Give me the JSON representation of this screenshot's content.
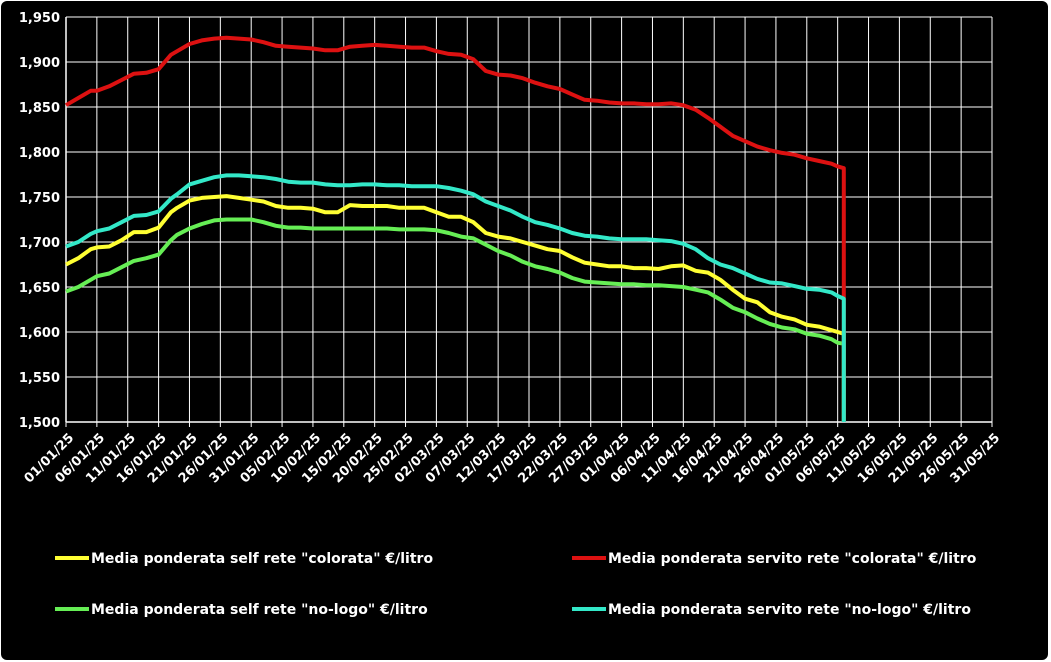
{
  "chart_data": {
    "type": "line",
    "title": "",
    "xlabel": "",
    "ylabel": "",
    "ylim": [
      1.5,
      1.95
    ],
    "y_ticks": [
      "1,500",
      "1,550",
      "1,600",
      "1,650",
      "1,700",
      "1,750",
      "1,800",
      "1,850",
      "1,900",
      "1,950"
    ],
    "x_tick_labels": [
      "01/01/25",
      "06/01/25",
      "11/01/25",
      "16/01/25",
      "21/01/25",
      "26/01/25",
      "31/01/25",
      "05/02/25",
      "10/02/25",
      "15/02/25",
      "20/02/25",
      "25/02/25",
      "02/03/25",
      "07/03/25",
      "12/03/25",
      "17/03/25",
      "22/03/25",
      "27/03/25",
      "01/04/25",
      "06/04/25",
      "11/04/25",
      "16/04/25",
      "21/04/25",
      "26/04/25",
      "01/05/25",
      "06/05/25",
      "11/05/25",
      "16/05/25",
      "21/05/25",
      "26/05/25",
      "31/05/25"
    ],
    "x_day_span": 150,
    "grid": true,
    "legend_position": "bottom",
    "series": [
      {
        "name": "Media ponderata self rete \"colorata\" €/litro",
        "color": "#ffff33",
        "x": [
          0,
          2,
          4,
          5,
          7,
          9,
          11,
          13,
          15,
          17,
          18,
          20,
          22,
          24,
          26,
          28,
          30,
          32,
          34,
          36,
          38,
          40,
          42,
          44,
          46,
          48,
          50,
          52,
          54,
          56,
          58,
          60,
          62,
          64,
          66,
          68,
          70,
          72,
          74,
          76,
          78,
          80,
          82,
          84,
          86,
          88,
          90,
          92,
          94,
          96,
          98,
          100,
          102,
          104,
          106,
          108,
          110,
          112,
          114,
          116,
          118,
          120,
          122,
          124,
          125,
          126
        ],
        "values": [
          1.675,
          1.682,
          1.692,
          1.694,
          1.695,
          1.702,
          1.711,
          1.711,
          1.716,
          1.733,
          1.738,
          1.746,
          1.749,
          1.75,
          1.751,
          1.749,
          1.747,
          1.745,
          1.74,
          1.738,
          1.738,
          1.737,
          1.733,
          1.733,
          1.741,
          1.74,
          1.74,
          1.74,
          1.738,
          1.738,
          1.738,
          1.733,
          1.728,
          1.728,
          1.722,
          1.71,
          1.706,
          1.704,
          1.7,
          1.696,
          1.692,
          1.69,
          1.683,
          1.677,
          1.675,
          1.673,
          1.673,
          1.671,
          1.671,
          1.67,
          1.673,
          1.674,
          1.668,
          1.666,
          1.658,
          1.647,
          1.637,
          1.633,
          1.622,
          1.617,
          1.614,
          1.608,
          1.606,
          1.602,
          1.6,
          1.598
        ]
      },
      {
        "name": "Media ponderata self rete \"no-logo\" €/litro",
        "color": "#66ee55",
        "x": [
          0,
          2,
          4,
          5,
          7,
          9,
          11,
          13,
          15,
          17,
          18,
          20,
          22,
          24,
          26,
          28,
          30,
          32,
          34,
          36,
          38,
          40,
          42,
          44,
          46,
          48,
          50,
          52,
          54,
          56,
          58,
          60,
          62,
          64,
          66,
          68,
          70,
          72,
          74,
          76,
          78,
          80,
          82,
          84,
          86,
          88,
          90,
          92,
          94,
          96,
          98,
          100,
          102,
          104,
          106,
          108,
          110,
          112,
          114,
          116,
          118,
          120,
          122,
          124,
          125,
          126
        ],
        "values": [
          1.645,
          1.65,
          1.658,
          1.662,
          1.665,
          1.672,
          1.679,
          1.682,
          1.686,
          1.702,
          1.708,
          1.715,
          1.72,
          1.724,
          1.725,
          1.725,
          1.725,
          1.722,
          1.718,
          1.716,
          1.716,
          1.715,
          1.715,
          1.715,
          1.715,
          1.715,
          1.715,
          1.715,
          1.714,
          1.714,
          1.714,
          1.713,
          1.71,
          1.706,
          1.704,
          1.697,
          1.69,
          1.685,
          1.678,
          1.673,
          1.67,
          1.666,
          1.66,
          1.656,
          1.655,
          1.654,
          1.653,
          1.653,
          1.652,
          1.652,
          1.651,
          1.65,
          1.647,
          1.644,
          1.636,
          1.627,
          1.622,
          1.615,
          1.609,
          1.605,
          1.603,
          1.598,
          1.596,
          1.592,
          1.588,
          1.587
        ]
      },
      {
        "name": "Media ponderata servito rete \"colorata\" €/litro",
        "color": "#dd1111",
        "x": [
          0,
          2,
          4,
          5,
          7,
          9,
          11,
          13,
          15,
          17,
          18,
          20,
          22,
          24,
          26,
          28,
          30,
          32,
          34,
          36,
          38,
          40,
          42,
          44,
          46,
          48,
          50,
          52,
          54,
          56,
          58,
          60,
          62,
          64,
          66,
          68,
          70,
          72,
          74,
          76,
          78,
          80,
          82,
          84,
          86,
          88,
          90,
          92,
          94,
          96,
          98,
          100,
          102,
          104,
          106,
          108,
          110,
          112,
          114,
          116,
          118,
          120,
          122,
          124,
          125,
          126
        ],
        "values": [
          1.852,
          1.86,
          1.868,
          1.868,
          1.873,
          1.88,
          1.887,
          1.888,
          1.892,
          1.908,
          1.912,
          1.92,
          1.924,
          1.926,
          1.927,
          1.926,
          1.925,
          1.922,
          1.918,
          1.917,
          1.916,
          1.915,
          1.913,
          1.913,
          1.917,
          1.918,
          1.919,
          1.918,
          1.917,
          1.916,
          1.916,
          1.912,
          1.909,
          1.908,
          1.903,
          1.89,
          1.886,
          1.885,
          1.882,
          1.877,
          1.873,
          1.87,
          1.864,
          1.858,
          1.857,
          1.855,
          1.854,
          1.854,
          1.853,
          1.853,
          1.854,
          1.852,
          1.847,
          1.838,
          1.828,
          1.818,
          1.812,
          1.806,
          1.802,
          1.799,
          1.797,
          1.793,
          1.79,
          1.787,
          1.784,
          1.782
        ]
      },
      {
        "name": "Media ponderata servito rete \"no-logo\" €/litro",
        "color": "#33e8c8",
        "x": [
          0,
          2,
          4,
          5,
          7,
          9,
          11,
          13,
          15,
          17,
          18,
          20,
          22,
          24,
          26,
          28,
          30,
          32,
          34,
          36,
          38,
          40,
          42,
          44,
          46,
          48,
          50,
          52,
          54,
          56,
          58,
          60,
          62,
          64,
          66,
          68,
          70,
          72,
          74,
          76,
          78,
          80,
          82,
          84,
          86,
          88,
          90,
          92,
          94,
          96,
          98,
          100,
          102,
          104,
          106,
          108,
          110,
          112,
          114,
          116,
          118,
          120,
          122,
          124,
          125,
          126
        ],
        "values": [
          1.695,
          1.7,
          1.709,
          1.712,
          1.715,
          1.722,
          1.729,
          1.73,
          1.734,
          1.748,
          1.753,
          1.764,
          1.768,
          1.772,
          1.774,
          1.774,
          1.773,
          1.772,
          1.77,
          1.767,
          1.766,
          1.766,
          1.764,
          1.763,
          1.763,
          1.764,
          1.764,
          1.763,
          1.763,
          1.762,
          1.762,
          1.762,
          1.76,
          1.757,
          1.753,
          1.745,
          1.74,
          1.735,
          1.728,
          1.722,
          1.719,
          1.715,
          1.71,
          1.707,
          1.706,
          1.704,
          1.703,
          1.703,
          1.703,
          1.702,
          1.701,
          1.698,
          1.692,
          1.682,
          1.675,
          1.671,
          1.665,
          1.659,
          1.655,
          1.654,
          1.651,
          1.648,
          1.647,
          1.644,
          1.64,
          1.637
        ]
      }
    ]
  }
}
